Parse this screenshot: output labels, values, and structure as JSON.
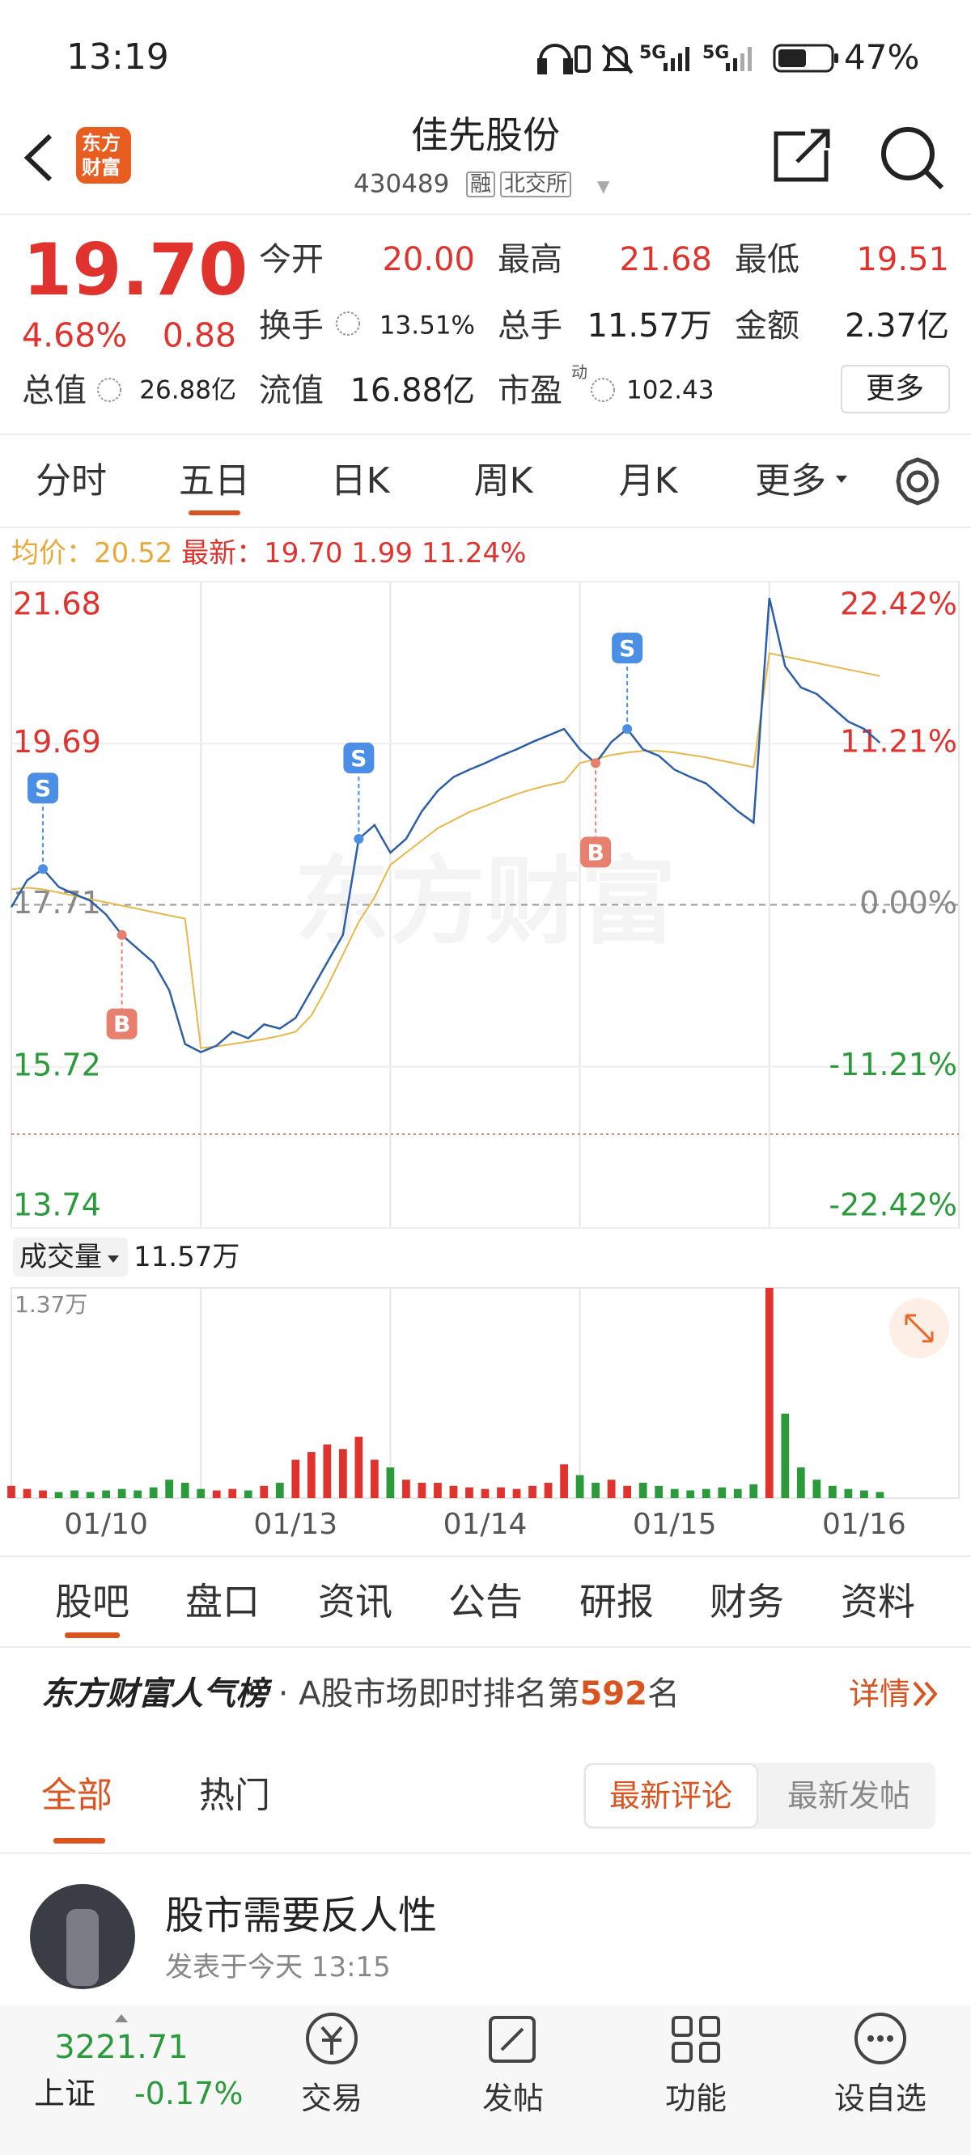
{
  "status_bar": {
    "time": "13:19",
    "network": [
      "5G",
      "5G"
    ],
    "battery": "47%"
  },
  "header": {
    "logo": [
      "东方",
      "财富"
    ],
    "title": "佳先股份",
    "code": "430489",
    "tags": [
      "融",
      "北交所"
    ]
  },
  "quote": {
    "price": "19.70",
    "change_pct": "4.68%",
    "change": "0.88",
    "total_value_label": "总值",
    "total_value": "26.88亿",
    "fields": [
      {
        "label": "今开",
        "value": "20.00"
      },
      {
        "label": "最高",
        "value": "21.68"
      },
      {
        "label": "最低",
        "value": "19.51"
      },
      {
        "label": "换手",
        "value": "13.51%"
      },
      {
        "label": "总手",
        "value": "11.57万"
      },
      {
        "label": "金额",
        "value": "2.37亿"
      },
      {
        "label": "流值",
        "value": "16.88亿"
      },
      {
        "label": "市盈",
        "sup": "动",
        "value": "102.43"
      }
    ],
    "more": "更多"
  },
  "period_tabs": [
    "分时",
    "五日",
    "日K",
    "周K",
    "月K",
    "更多"
  ],
  "chart_info": {
    "avg_label": "均价：",
    "avg": "20.52",
    "latest_label": "最新：",
    "latest": "19.70",
    "change": "1.99",
    "change_pct": "11.24%"
  },
  "watermark": "东方财富",
  "chart_data": [
    {
      "type": "line",
      "x": [
        0,
        1,
        2,
        3,
        4,
        5,
        6,
        7,
        8,
        9,
        10,
        11,
        12,
        13,
        14,
        15,
        16,
        17,
        18,
        19,
        20,
        21,
        22,
        23,
        24,
        25,
        26,
        27,
        28,
        29,
        30,
        31,
        32,
        33,
        34,
        35,
        36,
        37,
        38,
        39,
        40,
        41,
        42,
        43,
        44,
        45,
        46,
        47,
        48,
        49,
        50,
        51,
        52,
        53,
        54,
        55
      ],
      "xlim": [
        0,
        60
      ],
      "ylim": [
        13.74,
        21.68
      ],
      "yticks": [
        21.68,
        19.69,
        17.71,
        15.72,
        13.74
      ],
      "y2lim": [
        -22.42,
        22.42
      ],
      "y2ticks": [
        {
          "value": 22.42,
          "label": "22.42%"
        },
        {
          "value": 11.21,
          "label": "11.21%"
        },
        {
          "value": 0,
          "label": "0.00%"
        },
        {
          "value": -11.21,
          "label": "-11.21%"
        },
        {
          "value": -22.42,
          "label": "-22.42%"
        }
      ],
      "grid": true,
      "up_color": "#e0332e",
      "down_color": "#2a9a3a",
      "flat_color": "#888888",
      "series": [
        {
          "color": "#2d5fa8",
          "values": [
            17.68,
            18.01,
            18.15,
            17.93,
            17.84,
            17.76,
            17.59,
            17.34,
            17.17,
            17.0,
            16.66,
            16.0,
            15.9,
            15.98,
            16.15,
            16.07,
            16.24,
            16.19,
            16.32,
            16.66,
            17.0,
            17.34,
            18.52,
            18.69,
            18.35,
            18.52,
            18.86,
            19.11,
            19.28,
            19.37,
            19.45,
            19.54,
            19.62,
            19.71,
            19.79,
            19.87,
            19.62,
            19.45,
            19.71,
            19.87,
            19.62,
            19.54,
            19.37,
            19.28,
            19.2,
            19.03,
            18.86,
            18.72,
            21.48,
            20.64,
            20.38,
            20.3,
            20.13,
            19.96,
            19.87,
            19.7
          ]
        },
        {
          "color": "#e8b84a",
          "values": [
            17.9,
            17.92,
            17.9,
            17.86,
            17.82,
            17.78,
            17.74,
            17.7,
            17.66,
            17.62,
            17.58,
            17.54,
            15.95,
            15.97,
            16.0,
            16.03,
            16.06,
            16.1,
            16.15,
            16.35,
            16.7,
            17.1,
            17.5,
            17.8,
            18.2,
            18.35,
            18.5,
            18.65,
            18.75,
            18.85,
            18.92,
            19.0,
            19.07,
            19.13,
            19.18,
            19.22,
            19.45,
            19.5,
            19.55,
            19.58,
            19.6,
            19.6,
            19.58,
            19.55,
            19.52,
            19.48,
            19.44,
            19.4,
            20.8,
            20.76,
            20.72,
            20.68,
            20.64,
            20.6,
            20.56,
            20.52
          ]
        }
      ],
      "annotations": [
        {
          "text": "S",
          "x": 2,
          "y": 18.15,
          "position": "above",
          "color": "#4a8ee6"
        },
        {
          "text": "B",
          "x": 7,
          "y": 17.34,
          "position": "below",
          "color": "#e8806f"
        },
        {
          "text": "S",
          "x": 22,
          "y": 18.52,
          "position": "above",
          "color": "#4a8ee6"
        },
        {
          "text": "B",
          "x": 37,
          "y": 19.45,
          "position": "below",
          "color": "#e8806f"
        },
        {
          "text": "S",
          "x": 39,
          "y": 19.87,
          "position": "above",
          "color": "#4a8ee6"
        }
      ]
    },
    {
      "type": "bar",
      "title": "成交量",
      "subtitle": "11.57万",
      "x": [
        0,
        1,
        2,
        3,
        4,
        5,
        6,
        7,
        8,
        9,
        10,
        11,
        12,
        13,
        14,
        15,
        16,
        17,
        18,
        19,
        20,
        21,
        22,
        23,
        24,
        25,
        26,
        27,
        28,
        29,
        30,
        31,
        32,
        33,
        34,
        35,
        36,
        37,
        38,
        39,
        40,
        41,
        42,
        43,
        44,
        45,
        46,
        47,
        48,
        49,
        50,
        51,
        52,
        53,
        54,
        55
      ],
      "xlim": [
        0,
        60
      ],
      "xticks": [
        {
          "value": 6,
          "label": "01/10"
        },
        {
          "value": 18,
          "label": "01/13"
        },
        {
          "value": 30,
          "label": "01/14"
        },
        {
          "value": 42,
          "label": "01/15"
        },
        {
          "value": 54,
          "label": "01/16"
        }
      ],
      "ylim": [
        0,
        1.37
      ],
      "yticks": [
        {
          "value": 1.37,
          "label": "1.37万"
        }
      ],
      "values": [
        0.08,
        0.06,
        0.05,
        0.04,
        0.05,
        0.04,
        0.05,
        0.06,
        0.05,
        0.07,
        0.12,
        0.1,
        0.06,
        0.05,
        0.06,
        0.05,
        0.08,
        0.1,
        0.25,
        0.3,
        0.35,
        0.32,
        0.4,
        0.25,
        0.2,
        0.12,
        0.1,
        0.1,
        0.08,
        0.07,
        0.06,
        0.07,
        0.06,
        0.08,
        0.1,
        0.22,
        0.15,
        0.1,
        0.12,
        0.08,
        0.1,
        0.08,
        0.06,
        0.05,
        0.06,
        0.07,
        0.06,
        0.09,
        1.37,
        0.55,
        0.2,
        0.12,
        0.08,
        0.06,
        0.05,
        0.04
      ]
    }
  ],
  "section_tabs": [
    "股吧",
    "盘口",
    "资讯",
    "公告",
    "研报",
    "财务",
    "资料"
  ],
  "popularity": {
    "brand": "东方财富人气榜",
    "text": "· A股市场即时排名第",
    "rank": "592",
    "suffix": "名",
    "link": "详情"
  },
  "feed_filters": {
    "tabs": [
      "全部",
      "热门"
    ],
    "sort": [
      "最新评论",
      "最新发帖"
    ]
  },
  "post": {
    "author": "股市需要反人性",
    "time": "发表于今天 13:15"
  },
  "bottom_nav": {
    "index": {
      "value": "3221.71",
      "name": "上证",
      "change": "-0.17%"
    },
    "items": [
      "交易",
      "发帖",
      "功能",
      "设自选"
    ]
  }
}
